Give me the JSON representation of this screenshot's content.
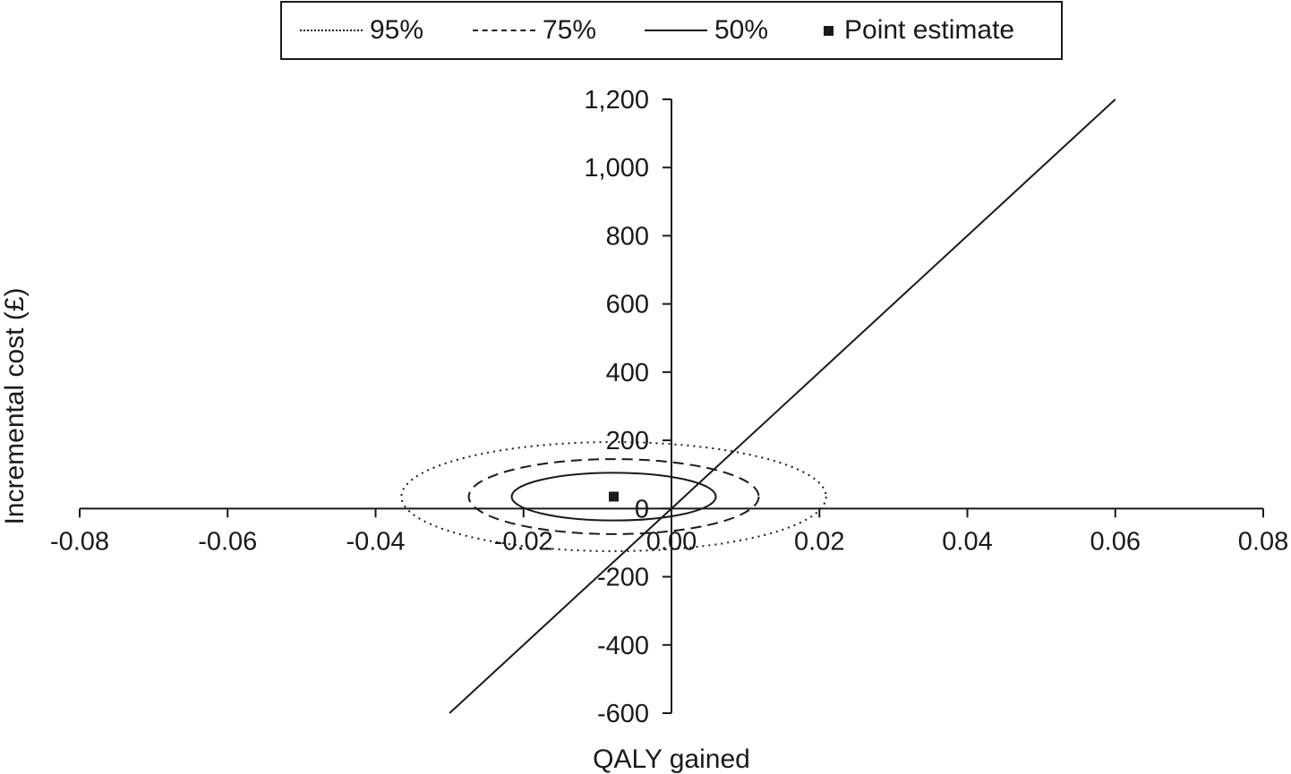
{
  "legend": {
    "items": [
      {
        "label": "95%",
        "style": "dotted"
      },
      {
        "label": "75%",
        "style": "dashed"
      },
      {
        "label": "50%",
        "style": "solid"
      },
      {
        "label": "Point estimate",
        "style": "square"
      }
    ]
  },
  "chart_data": {
    "type": "scatter",
    "title": "",
    "xlabel": "QALY gained",
    "ylabel": "Incremental cost (£)",
    "xlim": [
      -0.08,
      0.08
    ],
    "ylim": [
      -600,
      1200
    ],
    "x_ticks": [
      -0.08,
      -0.06,
      -0.04,
      -0.02,
      0.0,
      0.02,
      0.04,
      0.06,
      0.08
    ],
    "x_tick_labels": [
      "-0.08",
      "-0.06",
      "-0.04",
      "-0.02",
      "0.00",
      "0.02",
      "0.04",
      "0.06",
      "0.08"
    ],
    "y_ticks": [
      -600,
      -400,
      -200,
      0,
      200,
      400,
      600,
      800,
      1000,
      1200
    ],
    "y_tick_labels": [
      "-600",
      "-400",
      "-200",
      "0",
      "200",
      "400",
      "600",
      "800",
      "1,000",
      "1,200"
    ],
    "grid": false,
    "legend_position": "top",
    "point_estimate": {
      "x": -0.0078,
      "y": 35
    },
    "confidence_ellipses": [
      {
        "name": "95%",
        "style": "dotted",
        "center": {
          "x": -0.0078,
          "y": 35
        },
        "x_half_width": 0.0287,
        "y_half_height": 160
      },
      {
        "name": "75%",
        "style": "dashed",
        "center": {
          "x": -0.0078,
          "y": 35
        },
        "x_half_width": 0.0196,
        "y_half_height": 110
      },
      {
        "name": "50%",
        "style": "solid",
        "center": {
          "x": -0.0078,
          "y": 35
        },
        "x_half_width": 0.0138,
        "y_half_height": 70
      }
    ],
    "threshold_line": {
      "x_start": -0.03,
      "y_start": -600,
      "x_end": 0.06,
      "y_end": 1200
    },
    "colors": {
      "ink": "#1a1a1a",
      "background": "#ffffff"
    }
  }
}
